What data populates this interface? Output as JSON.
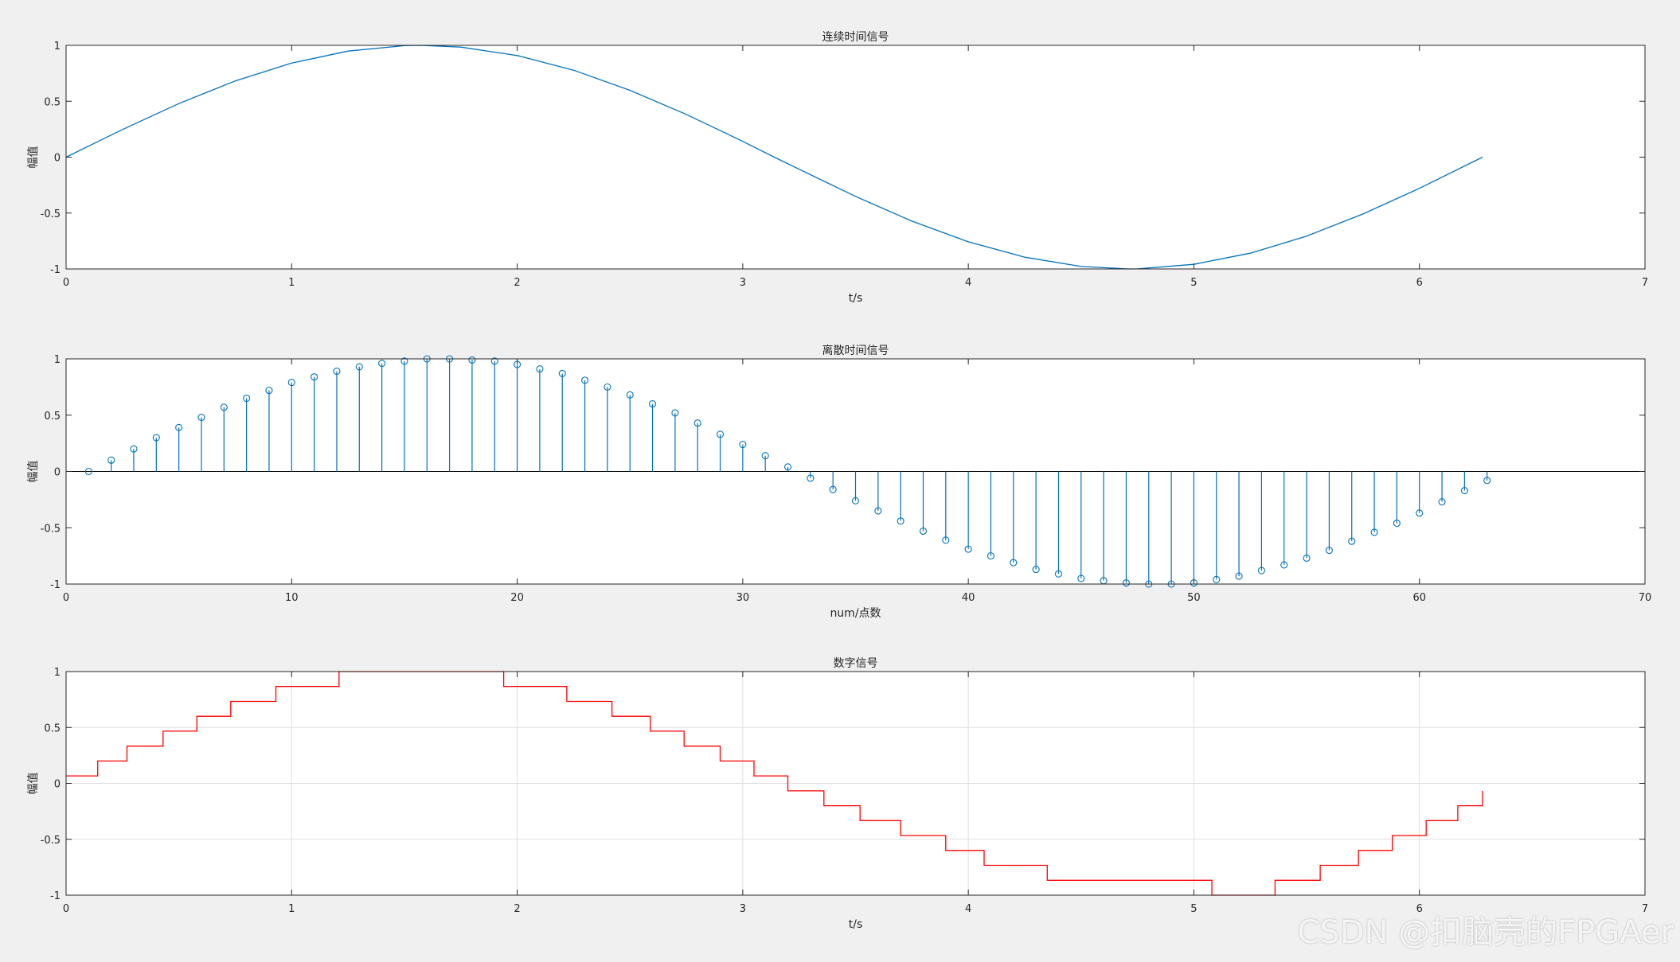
{
  "watermark": "CSDN @扣脑壳的FPGAer",
  "colors": {
    "background": "#f0f0f0",
    "axes_bg": "#ffffff",
    "axis": "#262626",
    "grid": "#dfdfdf",
    "series_blue": "#0072BD",
    "series_red": "#FF0000"
  },
  "chart_data": [
    {
      "type": "line",
      "title": "连续时间信号",
      "xlabel": "t/s",
      "ylabel": "幅值",
      "xlim": [
        0,
        7
      ],
      "ylim": [
        -1,
        1
      ],
      "xticks": [
        0,
        1,
        2,
        3,
        4,
        5,
        6,
        7
      ],
      "yticks": [
        -1,
        -0.5,
        0,
        0.5,
        1
      ],
      "xtick_labels": [
        "0",
        "1",
        "2",
        "3",
        "4",
        "5",
        "6",
        "7"
      ],
      "ytick_labels": [
        "-1",
        "-0.5",
        "0",
        "0.5",
        "1"
      ],
      "grid": false,
      "series": [
        {
          "color": "#0072BD",
          "x": [
            0,
            0.25,
            0.5,
            0.75,
            1,
            1.25,
            1.5,
            1.57,
            1.75,
            2,
            2.25,
            2.5,
            2.75,
            3,
            3.14,
            3.25,
            3.5,
            3.75,
            4,
            4.25,
            4.5,
            4.71,
            4.75,
            5,
            5.25,
            5.5,
            5.75,
            6,
            6.28
          ],
          "y": [
            0,
            0.247,
            0.479,
            0.682,
            0.841,
            0.949,
            0.997,
            1,
            0.984,
            0.909,
            0.778,
            0.598,
            0.382,
            0.141,
            0,
            -0.108,
            -0.351,
            -0.572,
            -0.757,
            -0.895,
            -0.978,
            -1,
            -0.999,
            -0.959,
            -0.859,
            -0.706,
            -0.508,
            -0.279,
            0
          ]
        }
      ]
    },
    {
      "type": "stem",
      "title": "离散时间信号",
      "xlabel": "num/点数",
      "ylabel": "幅值",
      "xlim": [
        0,
        70
      ],
      "ylim": [
        -1,
        1
      ],
      "xticks": [
        0,
        10,
        20,
        30,
        40,
        50,
        60,
        70
      ],
      "yticks": [
        -1,
        -0.5,
        0,
        0.5,
        1
      ],
      "xtick_labels": [
        "0",
        "10",
        "20",
        "30",
        "40",
        "50",
        "60",
        "70"
      ],
      "ytick_labels": [
        "-1",
        "-0.5",
        "0",
        "0.5",
        "1"
      ],
      "grid": false,
      "baseline": 0,
      "series": [
        {
          "color": "#0072BD",
          "x": [
            1,
            2,
            3,
            4,
            5,
            6,
            7,
            8,
            9,
            10,
            11,
            12,
            13,
            14,
            15,
            16,
            17,
            18,
            19,
            20,
            21,
            22,
            23,
            24,
            25,
            26,
            27,
            28,
            29,
            30,
            31,
            32,
            33,
            34,
            35,
            36,
            37,
            38,
            39,
            40,
            41,
            42,
            43,
            44,
            45,
            46,
            47,
            48,
            49,
            50,
            51,
            52,
            53,
            54,
            55,
            56,
            57,
            58,
            59,
            60,
            61,
            62,
            63
          ],
          "y": [
            0,
            0.1,
            0.2,
            0.3,
            0.39,
            0.48,
            0.57,
            0.65,
            0.72,
            0.79,
            0.84,
            0.89,
            0.93,
            0.96,
            0.98,
            1,
            1,
            0.99,
            0.98,
            0.95,
            0.91,
            0.87,
            0.81,
            0.75,
            0.68,
            0.6,
            0.52,
            0.43,
            0.33,
            0.24,
            0.14,
            0.04,
            -0.06,
            -0.16,
            -0.26,
            -0.35,
            -0.44,
            -0.53,
            -0.61,
            -0.69,
            -0.75,
            -0.81,
            -0.87,
            -0.91,
            -0.95,
            -0.97,
            -0.99,
            -1,
            -1,
            -0.99,
            -0.96,
            -0.93,
            -0.88,
            -0.83,
            -0.77,
            -0.7,
            -0.62,
            -0.54,
            -0.46,
            -0.37,
            -0.27,
            -0.17,
            -0.08
          ]
        }
      ]
    },
    {
      "type": "stairs",
      "title": "数字信号",
      "xlabel": "t/s",
      "ylabel": "幅值",
      "xlim": [
        0,
        7
      ],
      "ylim": [
        -1,
        1
      ],
      "xticks": [
        0,
        1,
        2,
        3,
        4,
        5,
        6,
        7
      ],
      "yticks": [
        -1,
        -0.5,
        0,
        0.5,
        1
      ],
      "xtick_labels": [
        "0",
        "1",
        "2",
        "3",
        "4",
        "5",
        "6",
        "7"
      ],
      "ytick_labels": [
        "-1",
        "-0.5",
        "0",
        "0.5",
        "1"
      ],
      "grid": true,
      "series": [
        {
          "color": "#FF0000",
          "x": [
            0,
            0.14,
            0.27,
            0.43,
            0.58,
            0.73,
            0.93,
            1.21,
            1.94,
            2.22,
            2.42,
            2.59,
            2.74,
            2.9,
            3.05,
            3.2,
            3.36,
            3.52,
            3.7,
            3.9,
            4.07,
            4.35,
            5.08,
            5.36,
            5.56,
            5.73,
            5.88,
            6.03,
            6.17,
            6.28
          ],
          "y": [
            0.067,
            0.2,
            0.333,
            0.467,
            0.6,
            0.733,
            0.867,
            1,
            0.867,
            0.733,
            0.6,
            0.467,
            0.333,
            0.2,
            0.067,
            -0.067,
            -0.2,
            -0.333,
            -0.467,
            -0.6,
            -0.733,
            -0.867,
            -1,
            -0.867,
            -0.733,
            -0.6,
            -0.467,
            -0.333,
            -0.2,
            -0.067
          ]
        }
      ]
    }
  ]
}
